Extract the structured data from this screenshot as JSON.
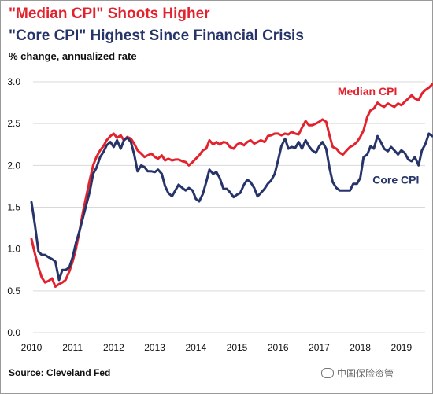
{
  "header": {
    "title1": "\"Median CPI\" Shoots Higher",
    "title2": "\"Core CPI\" Highest Since Financial Crisis",
    "subtitle": "% change, annualized rate"
  },
  "footer": {
    "source": "Source: Cleveland Fed",
    "watermark": "中国保险资管"
  },
  "colors": {
    "median": "#e2232e",
    "core": "#27346a",
    "grid": "#d9d9d9"
  },
  "chart_data": {
    "type": "line",
    "title": "",
    "xlabel": "",
    "ylabel": "",
    "xlim": [
      2010,
      2019.75
    ],
    "ylim": [
      0,
      3
    ],
    "yticks": [
      "0.0",
      "0.5",
      "1.0",
      "1.5",
      "2.0",
      "2.5",
      "3.0"
    ],
    "xticks": [
      "2010",
      "2011",
      "2012",
      "2013",
      "2014",
      "2015",
      "2016",
      "2017",
      "2018",
      "2019"
    ],
    "grid": true,
    "series": [
      {
        "name": "Median CPI",
        "label_anchor": [
          2017.45,
          2.84
        ],
        "points": [
          [
            2010.0,
            1.12
          ],
          [
            2010.08,
            0.95
          ],
          [
            2010.17,
            0.78
          ],
          [
            2010.25,
            0.66
          ],
          [
            2010.33,
            0.6
          ],
          [
            2010.42,
            0.62
          ],
          [
            2010.5,
            0.65
          ],
          [
            2010.58,
            0.55
          ],
          [
            2010.67,
            0.58
          ],
          [
            2010.75,
            0.6
          ],
          [
            2010.83,
            0.63
          ],
          [
            2010.92,
            0.73
          ],
          [
            2011.0,
            0.85
          ],
          [
            2011.08,
            1.0
          ],
          [
            2011.17,
            1.22
          ],
          [
            2011.25,
            1.44
          ],
          [
            2011.33,
            1.62
          ],
          [
            2011.42,
            1.83
          ],
          [
            2011.5,
            2.0
          ],
          [
            2011.58,
            2.1
          ],
          [
            2011.67,
            2.18
          ],
          [
            2011.75,
            2.23
          ],
          [
            2011.83,
            2.3
          ],
          [
            2011.92,
            2.35
          ],
          [
            2012.0,
            2.38
          ],
          [
            2012.08,
            2.33
          ],
          [
            2012.17,
            2.36
          ],
          [
            2012.25,
            2.3
          ],
          [
            2012.33,
            2.34
          ],
          [
            2012.42,
            2.32
          ],
          [
            2012.5,
            2.26
          ],
          [
            2012.58,
            2.18
          ],
          [
            2012.67,
            2.14
          ],
          [
            2012.75,
            2.1
          ],
          [
            2012.83,
            2.12
          ],
          [
            2012.92,
            2.14
          ],
          [
            2013.0,
            2.1
          ],
          [
            2013.08,
            2.08
          ],
          [
            2013.17,
            2.12
          ],
          [
            2013.25,
            2.06
          ],
          [
            2013.33,
            2.08
          ],
          [
            2013.42,
            2.06
          ],
          [
            2013.5,
            2.07
          ],
          [
            2013.58,
            2.07
          ],
          [
            2013.67,
            2.05
          ],
          [
            2013.75,
            2.04
          ],
          [
            2013.83,
            2.0
          ],
          [
            2013.92,
            2.04
          ],
          [
            2014.0,
            2.08
          ],
          [
            2014.08,
            2.12
          ],
          [
            2014.17,
            2.18
          ],
          [
            2014.25,
            2.2
          ],
          [
            2014.33,
            2.3
          ],
          [
            2014.42,
            2.25
          ],
          [
            2014.5,
            2.28
          ],
          [
            2014.58,
            2.25
          ],
          [
            2014.67,
            2.28
          ],
          [
            2014.75,
            2.27
          ],
          [
            2014.83,
            2.22
          ],
          [
            2014.92,
            2.2
          ],
          [
            2015.0,
            2.25
          ],
          [
            2015.08,
            2.27
          ],
          [
            2015.17,
            2.24
          ],
          [
            2015.25,
            2.28
          ],
          [
            2015.33,
            2.3
          ],
          [
            2015.42,
            2.26
          ],
          [
            2015.5,
            2.28
          ],
          [
            2015.58,
            2.3
          ],
          [
            2015.67,
            2.28
          ],
          [
            2015.75,
            2.35
          ],
          [
            2015.83,
            2.36
          ],
          [
            2015.92,
            2.38
          ],
          [
            2016.0,
            2.38
          ],
          [
            2016.08,
            2.36
          ],
          [
            2016.17,
            2.38
          ],
          [
            2016.25,
            2.37
          ],
          [
            2016.33,
            2.4
          ],
          [
            2016.42,
            2.38
          ],
          [
            2016.5,
            2.37
          ],
          [
            2016.58,
            2.45
          ],
          [
            2016.67,
            2.53
          ],
          [
            2016.75,
            2.48
          ],
          [
            2016.83,
            2.48
          ],
          [
            2016.92,
            2.5
          ],
          [
            2017.0,
            2.52
          ],
          [
            2017.08,
            2.55
          ],
          [
            2017.17,
            2.52
          ],
          [
            2017.25,
            2.36
          ],
          [
            2017.33,
            2.22
          ],
          [
            2017.42,
            2.2
          ],
          [
            2017.5,
            2.15
          ],
          [
            2017.58,
            2.13
          ],
          [
            2017.67,
            2.18
          ],
          [
            2017.75,
            2.22
          ],
          [
            2017.83,
            2.24
          ],
          [
            2017.92,
            2.28
          ],
          [
            2018.0,
            2.34
          ],
          [
            2018.08,
            2.42
          ],
          [
            2018.17,
            2.58
          ],
          [
            2018.25,
            2.66
          ],
          [
            2018.33,
            2.68
          ],
          [
            2018.42,
            2.75
          ],
          [
            2018.5,
            2.72
          ],
          [
            2018.58,
            2.7
          ],
          [
            2018.67,
            2.74
          ],
          [
            2018.75,
            2.72
          ],
          [
            2018.83,
            2.7
          ],
          [
            2018.92,
            2.74
          ],
          [
            2019.0,
            2.72
          ],
          [
            2019.08,
            2.76
          ],
          [
            2019.17,
            2.8
          ],
          [
            2019.25,
            2.84
          ],
          [
            2019.33,
            2.8
          ],
          [
            2019.42,
            2.78
          ],
          [
            2019.5,
            2.86
          ],
          [
            2019.58,
            2.9
          ],
          [
            2019.67,
            2.93
          ],
          [
            2019.75,
            2.97
          ]
        ]
      },
      {
        "name": "Core CPI",
        "label_anchor": [
          2018.3,
          1.78
        ],
        "points": [
          [
            2010.0,
            1.56
          ],
          [
            2010.08,
            1.3
          ],
          [
            2010.17,
            0.97
          ],
          [
            2010.25,
            0.93
          ],
          [
            2010.33,
            0.93
          ],
          [
            2010.42,
            0.9
          ],
          [
            2010.5,
            0.88
          ],
          [
            2010.58,
            0.85
          ],
          [
            2010.67,
            0.63
          ],
          [
            2010.75,
            0.75
          ],
          [
            2010.83,
            0.75
          ],
          [
            2010.92,
            0.78
          ],
          [
            2011.0,
            0.9
          ],
          [
            2011.08,
            1.07
          ],
          [
            2011.17,
            1.22
          ],
          [
            2011.25,
            1.37
          ],
          [
            2011.33,
            1.52
          ],
          [
            2011.42,
            1.69
          ],
          [
            2011.5,
            1.9
          ],
          [
            2011.58,
            1.97
          ],
          [
            2011.67,
            2.1
          ],
          [
            2011.75,
            2.16
          ],
          [
            2011.83,
            2.24
          ],
          [
            2011.92,
            2.28
          ],
          [
            2012.0,
            2.22
          ],
          [
            2012.08,
            2.3
          ],
          [
            2012.17,
            2.2
          ],
          [
            2012.25,
            2.3
          ],
          [
            2012.33,
            2.33
          ],
          [
            2012.42,
            2.28
          ],
          [
            2012.5,
            2.13
          ],
          [
            2012.58,
            1.93
          ],
          [
            2012.67,
            2.0
          ],
          [
            2012.75,
            1.98
          ],
          [
            2012.83,
            1.93
          ],
          [
            2012.92,
            1.93
          ],
          [
            2013.0,
            1.92
          ],
          [
            2013.08,
            1.95
          ],
          [
            2013.17,
            1.9
          ],
          [
            2013.25,
            1.75
          ],
          [
            2013.33,
            1.67
          ],
          [
            2013.42,
            1.63
          ],
          [
            2013.5,
            1.7
          ],
          [
            2013.58,
            1.77
          ],
          [
            2013.67,
            1.73
          ],
          [
            2013.75,
            1.7
          ],
          [
            2013.83,
            1.73
          ],
          [
            2013.92,
            1.7
          ],
          [
            2014.0,
            1.6
          ],
          [
            2014.08,
            1.57
          ],
          [
            2014.17,
            1.66
          ],
          [
            2014.25,
            1.8
          ],
          [
            2014.33,
            1.95
          ],
          [
            2014.42,
            1.9
          ],
          [
            2014.5,
            1.92
          ],
          [
            2014.58,
            1.85
          ],
          [
            2014.67,
            1.72
          ],
          [
            2014.75,
            1.72
          ],
          [
            2014.83,
            1.68
          ],
          [
            2014.92,
            1.62
          ],
          [
            2015.0,
            1.65
          ],
          [
            2015.08,
            1.67
          ],
          [
            2015.17,
            1.77
          ],
          [
            2015.25,
            1.83
          ],
          [
            2015.33,
            1.8
          ],
          [
            2015.42,
            1.73
          ],
          [
            2015.5,
            1.63
          ],
          [
            2015.58,
            1.67
          ],
          [
            2015.67,
            1.72
          ],
          [
            2015.75,
            1.78
          ],
          [
            2015.83,
            1.82
          ],
          [
            2015.92,
            1.9
          ],
          [
            2016.0,
            2.06
          ],
          [
            2016.08,
            2.23
          ],
          [
            2016.17,
            2.32
          ],
          [
            2016.25,
            2.2
          ],
          [
            2016.33,
            2.22
          ],
          [
            2016.42,
            2.21
          ],
          [
            2016.5,
            2.28
          ],
          [
            2016.58,
            2.2
          ],
          [
            2016.67,
            2.3
          ],
          [
            2016.75,
            2.23
          ],
          [
            2016.83,
            2.18
          ],
          [
            2016.92,
            2.15
          ],
          [
            2017.0,
            2.23
          ],
          [
            2017.08,
            2.28
          ],
          [
            2017.17,
            2.2
          ],
          [
            2017.25,
            1.97
          ],
          [
            2017.33,
            1.8
          ],
          [
            2017.42,
            1.73
          ],
          [
            2017.5,
            1.7
          ],
          [
            2017.58,
            1.7
          ],
          [
            2017.67,
            1.7
          ],
          [
            2017.75,
            1.7
          ],
          [
            2017.83,
            1.78
          ],
          [
            2017.92,
            1.78
          ],
          [
            2018.0,
            1.85
          ],
          [
            2018.08,
            2.1
          ],
          [
            2018.17,
            2.13
          ],
          [
            2018.25,
            2.23
          ],
          [
            2018.33,
            2.2
          ],
          [
            2018.42,
            2.35
          ],
          [
            2018.5,
            2.28
          ],
          [
            2018.58,
            2.2
          ],
          [
            2018.67,
            2.17
          ],
          [
            2018.75,
            2.22
          ],
          [
            2018.83,
            2.18
          ],
          [
            2018.92,
            2.13
          ],
          [
            2019.0,
            2.18
          ],
          [
            2019.08,
            2.15
          ],
          [
            2019.17,
            2.07
          ],
          [
            2019.25,
            2.05
          ],
          [
            2019.33,
            2.1
          ],
          [
            2019.42,
            2.0
          ],
          [
            2019.5,
            2.18
          ],
          [
            2019.58,
            2.25
          ],
          [
            2019.67,
            2.38
          ],
          [
            2019.75,
            2.35
          ]
        ]
      }
    ]
  }
}
